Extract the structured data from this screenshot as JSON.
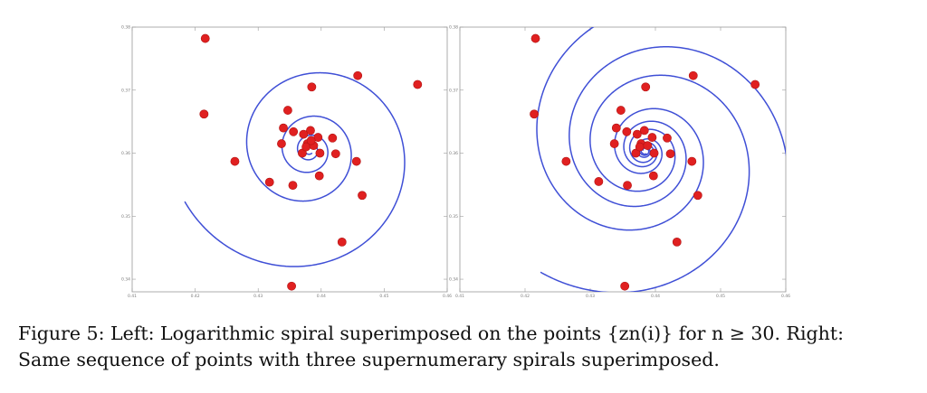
{
  "caption": {
    "line1": "Figure 5: Left: Logarithmic spiral superimposed on the points {zn(i)} for n ≥ 30. Right:",
    "line2": "Same sequence of points with three supernumerary spirals superimposed."
  },
  "colors": {
    "curve": "#3f4fd6",
    "points": "#e02020",
    "frame": "#9a9a9a",
    "ticks": "#7a7a7a"
  },
  "chart_data": [
    {
      "type": "scatter",
      "title": "",
      "xlabel": "",
      "ylabel": "",
      "xlim": [
        0.41,
        0.46
      ],
      "ylim": [
        0.338,
        0.38
      ],
      "x_ticks": [
        "0.41",
        "0.42",
        "0.43",
        "0.44",
        "0.45",
        "0.46"
      ],
      "y_ticks": [
        "0.34",
        "0.35",
        "0.36",
        "0.37",
        "0.38"
      ],
      "grid": false,
      "curves": [
        "single logarithmic spiral"
      ],
      "points": [
        [
          0.4216,
          0.3782
        ],
        [
          0.4214,
          0.3662
        ],
        [
          0.4263,
          0.3587
        ],
        [
          0.4353,
          0.3389
        ],
        [
          0.4433,
          0.3459
        ],
        [
          0.4458,
          0.3723
        ],
        [
          0.4553,
          0.3709
        ],
        [
          0.4465,
          0.3533
        ],
        [
          0.4456,
          0.3587
        ],
        [
          0.4385,
          0.3705
        ],
        [
          0.4318,
          0.3554
        ],
        [
          0.4355,
          0.3549
        ],
        [
          0.4397,
          0.3564
        ],
        [
          0.4423,
          0.3599
        ],
        [
          0.4347,
          0.3668
        ],
        [
          0.4418,
          0.3624
        ],
        [
          0.4378,
          0.3615
        ],
        [
          0.4337,
          0.3615
        ],
        [
          0.434,
          0.364
        ],
        [
          0.4356,
          0.3634
        ],
        [
          0.437,
          0.36
        ],
        [
          0.4398,
          0.36
        ],
        [
          0.4395,
          0.3625
        ],
        [
          0.4383,
          0.3636
        ],
        [
          0.4372,
          0.363
        ],
        [
          0.4376,
          0.361
        ],
        [
          0.4388,
          0.3612
        ],
        [
          0.4384,
          0.362
        ]
      ]
    },
    {
      "type": "scatter",
      "title": "",
      "xlabel": "",
      "ylabel": "",
      "xlim": [
        0.41,
        0.46
      ],
      "ylim": [
        0.338,
        0.38
      ],
      "x_ticks": [
        "0.41",
        "0.42",
        "0.43",
        "0.44",
        "0.45",
        "0.46"
      ],
      "y_ticks": [
        "0.34",
        "0.35",
        "0.36",
        "0.37",
        "0.38"
      ],
      "grid": false,
      "curves": [
        "spiral arm 1",
        "spiral arm 2",
        "spiral arm 3"
      ],
      "points": [
        [
          0.4216,
          0.3782
        ],
        [
          0.4214,
          0.3662
        ],
        [
          0.4263,
          0.3587
        ],
        [
          0.4313,
          0.3555
        ],
        [
          0.4357,
          0.3549
        ],
        [
          0.4353,
          0.3389
        ],
        [
          0.4433,
          0.3459
        ],
        [
          0.4465,
          0.3533
        ],
        [
          0.4456,
          0.3587
        ],
        [
          0.4418,
          0.3624
        ],
        [
          0.4458,
          0.3723
        ],
        [
          0.4553,
          0.3709
        ],
        [
          0.4385,
          0.3705
        ],
        [
          0.4347,
          0.3668
        ],
        [
          0.434,
          0.364
        ],
        [
          0.4397,
          0.3564
        ],
        [
          0.4423,
          0.3599
        ],
        [
          0.4337,
          0.3615
        ],
        [
          0.4378,
          0.3615
        ],
        [
          0.4395,
          0.3625
        ],
        [
          0.437,
          0.36
        ],
        [
          0.4398,
          0.36
        ],
        [
          0.4356,
          0.3634
        ],
        [
          0.4383,
          0.3636
        ],
        [
          0.4372,
          0.363
        ],
        [
          0.4376,
          0.361
        ],
        [
          0.4388,
          0.3612
        ]
      ]
    }
  ]
}
